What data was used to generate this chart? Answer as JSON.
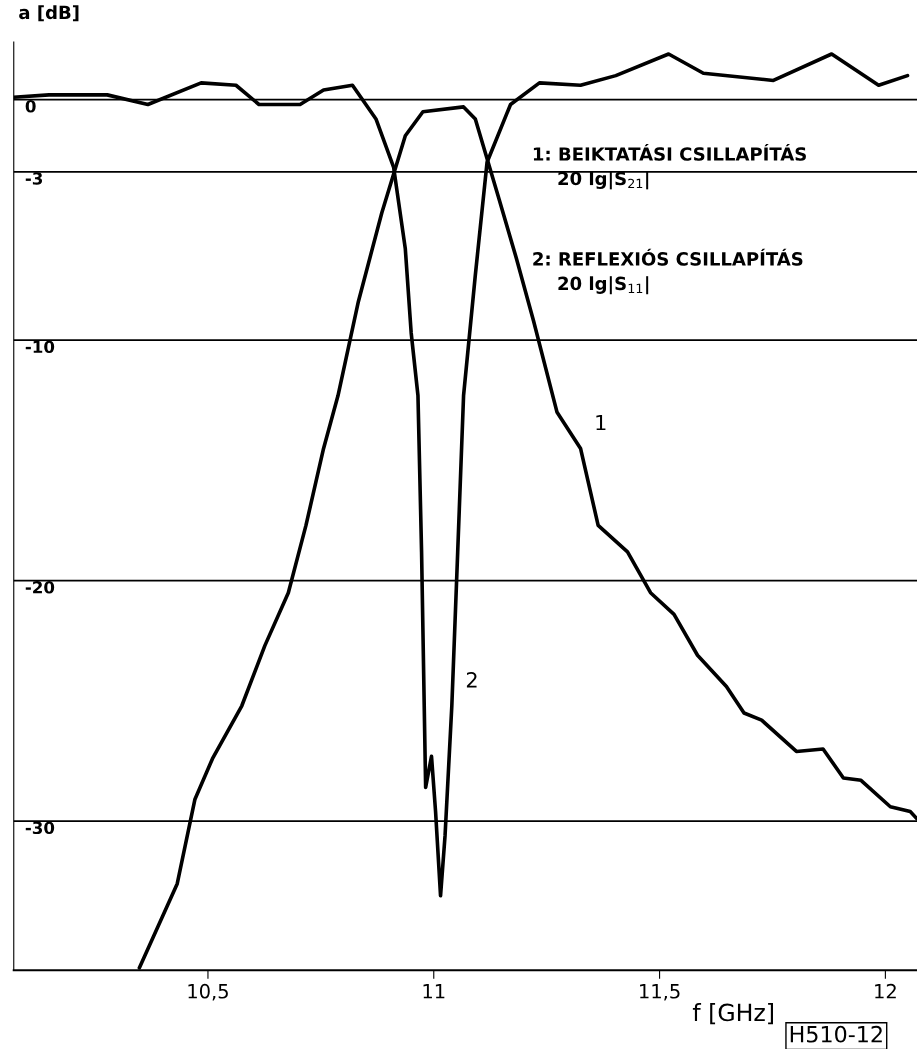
{
  "chart_data": {
    "type": "line",
    "xlabel": "f [GHz]",
    "ylabel": "a [dB]",
    "xlim": [
      10.07,
      12.07
    ],
    "ylim": [
      -36.2,
      2.4
    ],
    "xticks": [
      {
        "value": 10.5,
        "label": "10,5"
      },
      11,
      {
        "value": 11.5,
        "label": "11,5"
      },
      12
    ],
    "yticks": [
      0,
      -3,
      -10,
      -20,
      -30
    ],
    "grid": "y",
    "legend": false,
    "marker": "none",
    "line_style": "solid",
    "series": [
      {
        "name": "1",
        "color": "#000000",
        "x": [
          10.348,
          10.432,
          10.471,
          10.51,
          10.575,
          10.626,
          10.678,
          10.717,
          10.756,
          10.788,
          10.833,
          10.885,
          10.937,
          10.976,
          11.066,
          11.092,
          11.144,
          11.183,
          11.221,
          11.273,
          11.325,
          11.364,
          11.429,
          11.48,
          11.532,
          11.584,
          11.648,
          11.687,
          11.726,
          11.803,
          11.862,
          11.907,
          11.946,
          12.011,
          12.055,
          12.07
        ],
        "values": [
          -36.1,
          -32.6,
          -29.1,
          -27.4,
          -25.2,
          -22.7,
          -20.5,
          -17.7,
          -14.5,
          -12.3,
          -8.4,
          -4.7,
          -1.5,
          -0.5,
          -0.3,
          -0.8,
          -4.1,
          -6.6,
          -9.2,
          -13.0,
          -14.5,
          -17.7,
          -18.8,
          -20.5,
          -21.4,
          -23.1,
          -24.4,
          -25.5,
          -25.8,
          -27.1,
          -27.0,
          -28.2,
          -28.3,
          -29.4,
          -29.6,
          -29.9
        ]
      },
      {
        "name": "2",
        "color": "#000000",
        "x": [
          10.07,
          10.148,
          10.277,
          10.367,
          10.485,
          10.562,
          10.613,
          10.704,
          10.756,
          10.82,
          10.872,
          10.911,
          10.937,
          10.95,
          10.965,
          10.973,
          10.982,
          10.995,
          11.004,
          11.015,
          11.025,
          11.04,
          11.053,
          11.066,
          11.092,
          11.118,
          11.17,
          11.234,
          11.325,
          11.403,
          11.52,
          11.597,
          11.752,
          11.881,
          11.985,
          12.049
        ],
        "values": [
          0.1,
          0.2,
          0.2,
          -0.2,
          0.7,
          0.6,
          -0.2,
          -0.2,
          0.4,
          0.6,
          -0.8,
          -2.8,
          -6.2,
          -9.7,
          -12.3,
          -18.8,
          -28.6,
          -27.3,
          -29.6,
          -33.1,
          -30.6,
          -25.2,
          -18.8,
          -12.3,
          -7.3,
          -2.6,
          -0.2,
          0.7,
          0.6,
          1.0,
          1.9,
          1.1,
          0.8,
          1.9,
          0.6,
          1.0
        ]
      }
    ],
    "annotations": [
      "1: BEIKTATÁSI CSILLAPÍTÁS\n    20 lg|S$_{21}$|",
      "2: REFLEXIÓS CSILLAPÍTÁS\n    20 lg|S$_{11}$|",
      "H510-12"
    ]
  }
}
